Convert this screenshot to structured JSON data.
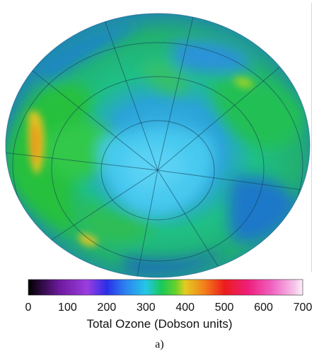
{
  "figure_label": "a)",
  "map": {
    "title": "",
    "grid_lines": true
  },
  "colorbar": {
    "title": "Total Ozone (Dobson units)",
    "range": [
      0,
      700
    ],
    "ticks": [
      "0",
      "100",
      "200",
      "300",
      "400",
      "500",
      "600",
      "700"
    ],
    "stops": [
      {
        "value": 0,
        "color": "#000000"
      },
      {
        "value": 80,
        "color": "#6e1a9e"
      },
      {
        "value": 150,
        "color": "#9b3de0"
      },
      {
        "value": 200,
        "color": "#2b2ee8"
      },
      {
        "value": 250,
        "color": "#2c86f0"
      },
      {
        "value": 300,
        "color": "#25c6e6"
      },
      {
        "value": 340,
        "color": "#19c85a"
      },
      {
        "value": 375,
        "color": "#63d12a"
      },
      {
        "value": 400,
        "color": "#e3cc21"
      },
      {
        "value": 450,
        "color": "#f37e1a"
      },
      {
        "value": 500,
        "color": "#ec1c1c"
      },
      {
        "value": 560,
        "color": "#ee1e7a"
      },
      {
        "value": 620,
        "color": "#f060c0"
      },
      {
        "value": 680,
        "color": "#f6c6ea"
      },
      {
        "value": 700,
        "color": "#fdf0fa"
      }
    ]
  }
}
